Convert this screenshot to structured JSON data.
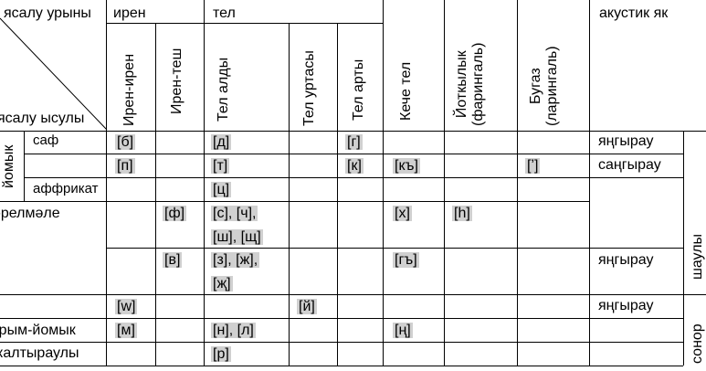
{
  "headers": {
    "diag_top": "ясалу урыны",
    "diag_bottom": "ясалу ысулы",
    "iren": "ирен",
    "tel": "тел",
    "keche_tel": "Кече тел",
    "yotkylyk": "Йоткылык\n(фарингаль)",
    "bugaz": "Бугаз\n(ларингаль)",
    "akustik": "акустик як",
    "iren_iren": "Ирен-ирен",
    "iren_tesh": "Ирен-теш",
    "tel_aldy": "Тел алды",
    "tel_urtasy": "Тел уртасы",
    "tel_arty": "Тел арты"
  },
  "rows": {
    "yomyk": "йомык",
    "saf": "саф",
    "affrikat": "аффрикат",
    "yarelmele": "әрелмәле",
    "yarym_yomyk": "ярым-йомык",
    "kaltyrauly": "калтыраулы"
  },
  "cells": {
    "r1_b": "[б]",
    "r1_d": "[д]",
    "r1_g": "[г]",
    "r2_p": "[п]",
    "r2_t": "[т]",
    "r2_k": "[к]",
    "r2_kq": "[къ]",
    "r2_glottal": "[ʼ]",
    "r3_c": "[ц]",
    "r4_f": "[ф]",
    "r4_s1": "[с], [ч],",
    "r4_s2": "[ш], [щ]",
    "r4_h": "[х]",
    "r4_hh": "[һ]",
    "r5_v": "[в]",
    "r5_z1": "[з], [ж],",
    "r5_z2": "[җ]",
    "r5_gq": "[гъ]",
    "r6_w": "[w]",
    "r6_y": "[й]",
    "r7_m": "[м]",
    "r7_nl": "[н], [л]",
    "r7_ng": "[ң]",
    "r8_r": "[р]"
  },
  "acoustic": {
    "a1": "яңгырау",
    "a2": "саңгырау",
    "a3": "яңгырау",
    "a4": "яңгырау",
    "side_shau": "шаулы",
    "side_sonor": "сонор"
  }
}
